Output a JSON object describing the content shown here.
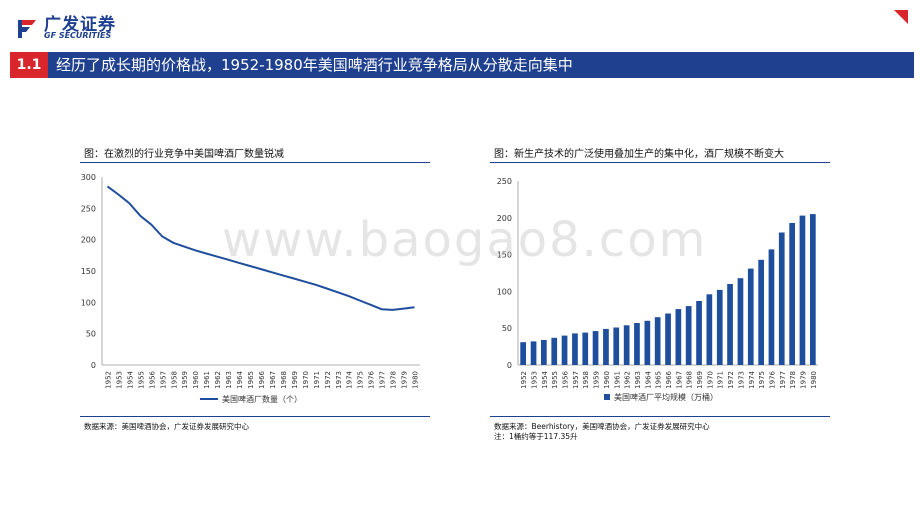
{
  "brand": {
    "name_cn": "广发证券",
    "name_en": "GF SECURITIES",
    "color": "#1f3f8f",
    "accent": "#d9262c",
    "logo_icon": "gf-logo-icon"
  },
  "header": {
    "section_number": "1.1",
    "title": "经历了成长期的价格战，1952-1980年美国啤酒行业竞争格局从分散走向集中"
  },
  "left_panel": {
    "title": "图：在激烈的行业竞争中美国啤酒厂数量锐减",
    "source": "数据来源：美国啤酒协会，广发证券发展研究中心"
  },
  "right_panel": {
    "title": "图：新生产技术的广泛使用叠加生产的集中化，酒厂规模不断变大",
    "source": "数据来源：Beerhistory，美国啤酒协会，广发证券发展研究中心",
    "note": "注：1桶约等于117.35升"
  },
  "watermark": "www.baogao8.com",
  "chart_data": [
    {
      "type": "line",
      "x": [
        "1952",
        "1953",
        "1954",
        "1955",
        "1956",
        "1957",
        "1958",
        "1959",
        "1960",
        "1961",
        "1962",
        "1963",
        "1964",
        "1965",
        "1966",
        "1967",
        "1968",
        "1969",
        "1970",
        "1971",
        "1972",
        "1973",
        "1974",
        "1975",
        "1976",
        "1977",
        "1978",
        "1979",
        "1980"
      ],
      "series": [
        {
          "name": "美国啤酒厂数量（个）",
          "color": "#1f4e9c",
          "values": [
            285,
            272,
            258,
            238,
            224,
            205,
            195,
            189,
            183,
            178,
            173,
            168,
            163,
            158,
            153,
            148,
            143,
            138,
            133,
            128,
            122,
            116,
            110,
            103,
            96,
            89,
            88,
            90,
            92
          ]
        }
      ],
      "ylim": [
        0,
        300
      ],
      "yticks": [
        0,
        50,
        100,
        150,
        200,
        250,
        300
      ],
      "legend": "bottom"
    },
    {
      "type": "bar",
      "categories": [
        "1952",
        "1953",
        "1954",
        "1955",
        "1956",
        "1957",
        "1958",
        "1959",
        "1960",
        "1961",
        "1962",
        "1963",
        "1964",
        "1965",
        "1966",
        "1967",
        "1968",
        "1969",
        "1970",
        "1971",
        "1972",
        "1973",
        "1974",
        "1975",
        "1976",
        "1977",
        "1978",
        "1979",
        "1980"
      ],
      "series": [
        {
          "name": "美国啤酒厂平均规模（万桶）",
          "color": "#1f4e9c",
          "values": [
            31,
            32,
            34,
            37,
            40,
            43,
            44,
            46,
            49,
            51,
            54,
            57,
            60,
            65,
            70,
            76,
            80,
            87,
            96,
            102,
            110,
            118,
            131,
            143,
            157,
            180,
            193,
            203,
            205
          ]
        }
      ],
      "ylim": [
        0,
        250
      ],
      "yticks": [
        0,
        50,
        100,
        150,
        200,
        250
      ],
      "legend": "bottom"
    }
  ]
}
